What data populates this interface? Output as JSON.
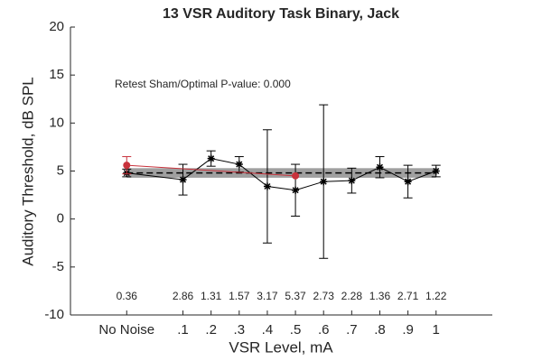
{
  "chart_data": {
    "type": "errorbar",
    "title": "13 VSR Auditory Task Binary, Jack",
    "xlabel": "VSR Level, mA",
    "ylabel": "Auditory Threshold, dB SPL",
    "annotation": "Retest Sham/Optimal P-value: 0.000",
    "xlim": [
      -0.3,
      1.2
    ],
    "ylim": [
      -10,
      20
    ],
    "xticks": [
      {
        "value": -0.1,
        "label": "No Noise"
      },
      {
        "value": 0.1,
        "label": ".1"
      },
      {
        "value": 0.2,
        "label": ".2"
      },
      {
        "value": 0.3,
        "label": ".3"
      },
      {
        "value": 0.4,
        "label": ".4"
      },
      {
        "value": 0.5,
        "label": ".5"
      },
      {
        "value": 0.6,
        "label": ".6"
      },
      {
        "value": 0.7,
        "label": ".7"
      },
      {
        "value": 0.8,
        "label": ".8"
      },
      {
        "value": 0.9,
        "label": ".9"
      },
      1
    ],
    "yticks": [
      -10,
      -5,
      0,
      5,
      10,
      15,
      20
    ],
    "grid": false,
    "reference_band": {
      "center": 4.8,
      "low": 4.3,
      "high": 5.3,
      "color": "#a0a0a0"
    },
    "bottom_labels": [
      0.36,
      2.86,
      1.31,
      1.57,
      3.17,
      5.37,
      2.73,
      2.28,
      1.36,
      2.71,
      1.22
    ],
    "series": [
      {
        "color": "#000000",
        "marker": "asterisk",
        "x": [
          -0.1,
          0.1,
          0.2,
          0.3,
          0.4,
          0.5,
          0.6,
          0.7,
          0.8,
          0.9,
          1
        ],
        "values": [
          4.8,
          4.1,
          6.3,
          5.7,
          3.4,
          3.0,
          3.9,
          4.0,
          5.4,
          3.9,
          5.0
        ],
        "errors": [
          0.4,
          1.6,
          0.8,
          0.8,
          5.9,
          2.7,
          8.0,
          1.3,
          1.1,
          1.7,
          0.6
        ]
      },
      {
        "color": "#c8323c",
        "marker": "circle",
        "x": [
          -0.1,
          0.5
        ],
        "values": [
          5.6,
          4.5
        ],
        "errors": [
          0.9,
          null
        ]
      }
    ]
  }
}
